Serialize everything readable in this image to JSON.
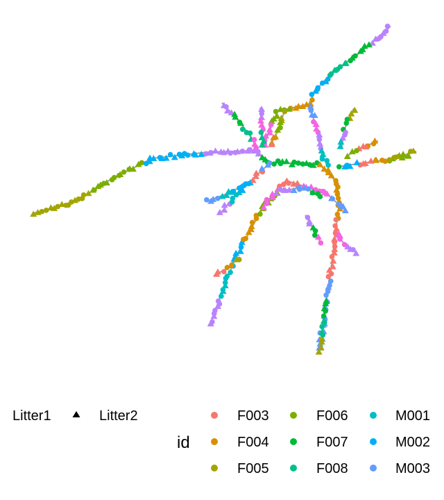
{
  "chart_data": {
    "type": "network",
    "title": "",
    "xlabel": "",
    "ylabel": "",
    "grid": false,
    "legend_position": "bottom",
    "edge_color": "#a0a0a0",
    "shape_legend": {
      "entries": [
        {
          "label": "Litter1",
          "shape": "circle"
        },
        {
          "label": "Litter2",
          "shape": "triangle"
        }
      ]
    },
    "color_legend": {
      "title": "id",
      "entries": [
        {
          "label": "F003",
          "color": "#F8766D"
        },
        {
          "label": "F004",
          "color": "#D89000"
        },
        {
          "label": "F005",
          "color": "#A3A500"
        },
        {
          "label": "F006",
          "color": "#7CAE00"
        },
        {
          "label": "F007",
          "color": "#00BA38"
        },
        {
          "label": "F008",
          "color": "#00C08B"
        },
        {
          "label": "M001",
          "color": "#00BFC4"
        },
        {
          "label": "M002",
          "color": "#00B0F6"
        },
        {
          "label": "M003",
          "color": "#619CFF"
        }
      ],
      "extra_colors_in_plot": [
        "#F564E3",
        "#B983FF"
      ]
    }
  }
}
